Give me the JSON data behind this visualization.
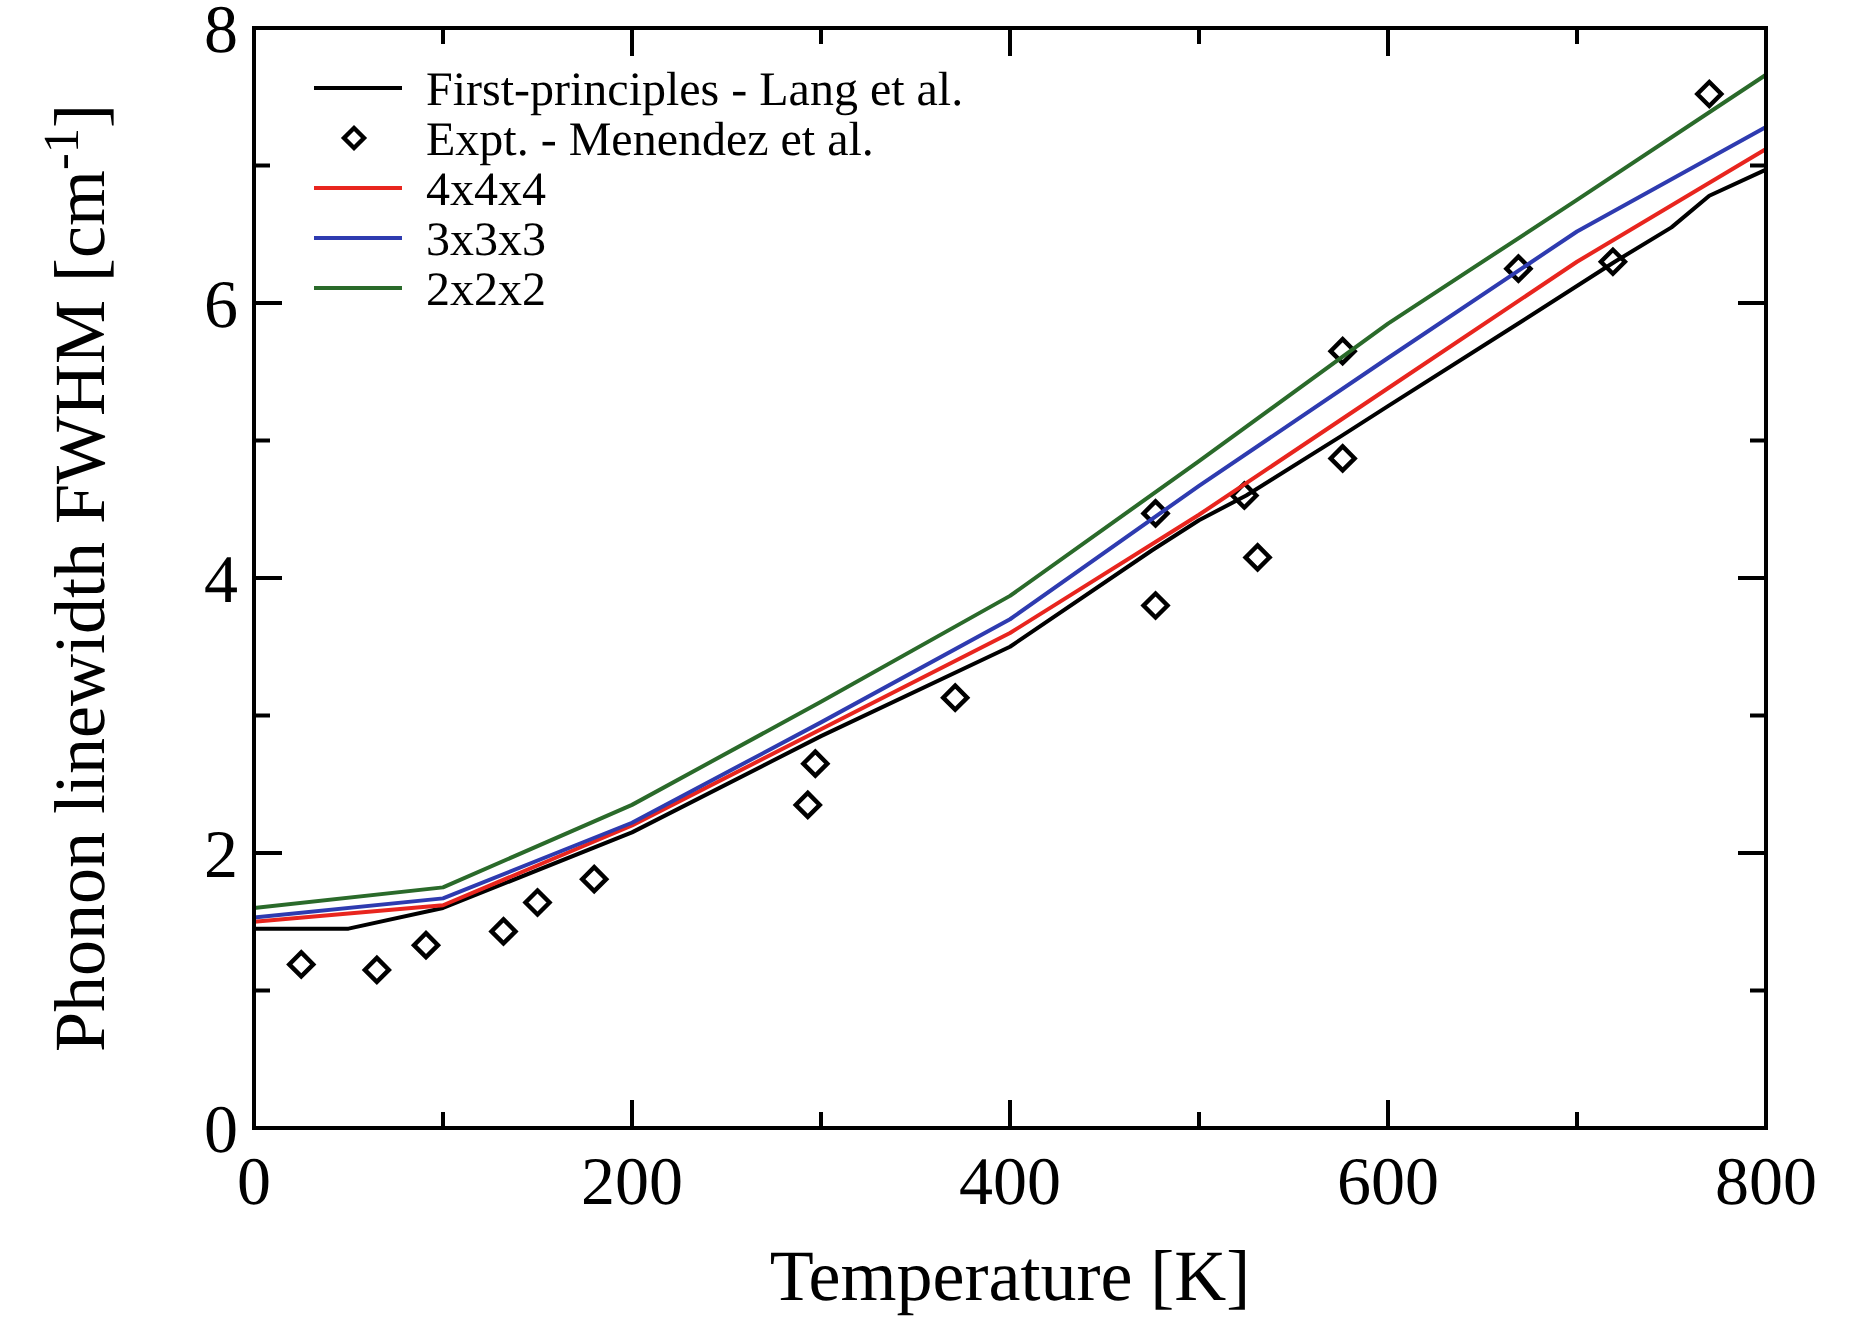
{
  "chart_data": {
    "type": "line",
    "xlabel": "Temperature [K]",
    "ylabel": "Phonon linewidth  FWHM [cm$^{-1}$]",
    "xlim": [
      0,
      800
    ],
    "ylim": [
      0,
      8
    ],
    "xticks": [
      0,
      {
        "value": 100,
        "label": null
      },
      200,
      {
        "value": 300,
        "label": null
      },
      400,
      {
        "value": 500,
        "label": null
      },
      600,
      {
        "value": 700,
        "label": null
      },
      800
    ],
    "yticks": [
      0,
      {
        "value": 1,
        "label": null
      },
      2,
      {
        "value": 3,
        "label": null
      },
      4,
      {
        "value": 5,
        "label": null
      },
      6,
      {
        "value": 7,
        "label": null
      },
      8
    ],
    "grid": false,
    "legend": "top left",
    "line_style": "solid",
    "marker": "none",
    "series": [
      {
        "name": "First-principles - Lang et al.",
        "color": "#000000",
        "x": [
          0,
          50,
          100,
          200,
          300,
          400,
          475,
          500,
          525,
          575,
          600,
          670,
          720,
          750,
          770,
          800
        ],
        "values": [
          1.45,
          1.45,
          1.6,
          2.15,
          2.85,
          3.5,
          4.2,
          4.42,
          4.6,
          5.03,
          5.25,
          5.86,
          6.3,
          6.55,
          6.78,
          6.97
        ]
      },
      {
        "name": "Expt. - Menendez et al.",
        "type": "scatter",
        "marker": "diamond",
        "color": "#000000",
        "x": [
          25,
          65,
          91,
          132,
          150,
          180,
          293,
          297,
          371,
          477,
          477,
          524,
          531,
          576,
          576,
          669,
          719,
          770
        ],
        "values": [
          1.19,
          1.15,
          1.33,
          1.43,
          1.64,
          1.81,
          2.35,
          2.65,
          3.13,
          3.8,
          4.47,
          4.6,
          4.15,
          4.87,
          5.65,
          6.25,
          6.3,
          7.52
        ]
      },
      {
        "name": "4x4x4",
        "color": "#e8251e",
        "x": [
          0,
          100,
          200,
          300,
          400,
          500,
          600,
          700,
          800
        ],
        "values": [
          1.5,
          1.62,
          2.2,
          2.9,
          3.6,
          4.46,
          5.38,
          6.3,
          7.12
        ]
      },
      {
        "name": "3x3x3",
        "color": "#2e3bb0",
        "x": [
          0,
          100,
          200,
          300,
          400,
          500,
          600,
          700,
          800
        ],
        "values": [
          1.53,
          1.67,
          2.22,
          2.95,
          3.7,
          4.67,
          5.6,
          6.52,
          7.28
        ]
      },
      {
        "name": "2x2x2",
        "color": "#2a6a2a",
        "x": [
          0,
          100,
          200,
          300,
          400,
          500,
          600,
          700,
          800
        ],
        "values": [
          1.6,
          1.75,
          2.35,
          3.1,
          3.87,
          4.85,
          5.85,
          6.75,
          7.66
        ]
      }
    ]
  }
}
